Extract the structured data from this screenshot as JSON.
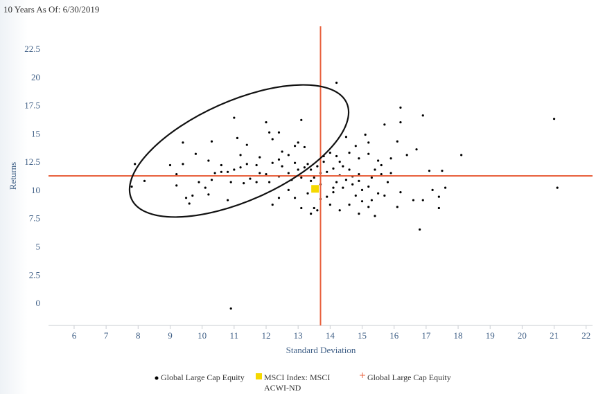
{
  "chart_data": {
    "type": "scatter",
    "title": "10 Years As Of: 6/30/2019",
    "x_label": "Standard Deviation",
    "y_label": "Returns",
    "xlim": [
      5.2,
      22.2
    ],
    "ylim": [
      -1.9,
      24.6
    ],
    "xticks": [
      6,
      7,
      8,
      9,
      10,
      11,
      12,
      13,
      14,
      15,
      16,
      17,
      18,
      19,
      20,
      21,
      22
    ],
    "yticks": [
      0,
      2.5,
      5,
      7.5,
      10,
      12.5,
      15,
      17.5,
      20,
      22.5
    ],
    "series": [
      {
        "name": "Global Large Cap Equity",
        "color": "#000000",
        "marker": "dot",
        "x": [
          10.9,
          14.2,
          21,
          21.1,
          16.8,
          7.8,
          7.9,
          8.2,
          16.2,
          16.9,
          18.1,
          15.7,
          15.1,
          16.2,
          16.1,
          16.7,
          17.5,
          17.1,
          17.6,
          17.2,
          17.4,
          17.4,
          16.9,
          16.2,
          16.6,
          16.1,
          15.7,
          15.4,
          16.4,
          11,
          12,
          13.1,
          12.1,
          12.4,
          11.1,
          12.2,
          10.3,
          9.4,
          13,
          13.2,
          12.7,
          9.8,
          11.2,
          11.8,
          12.4,
          9,
          9.4,
          11.7,
          11.4,
          11.2,
          10.6,
          10.8,
          10.4,
          9.2,
          10.1,
          9.2,
          10.2,
          9.5,
          9.7,
          9.6,
          10.8,
          10.9,
          11.3,
          11.7,
          12.1,
          12,
          12.4,
          12.7,
          12.4,
          12.2,
          12.9,
          12.7,
          13.3,
          13.1,
          13.4,
          13.5,
          13.7,
          13.9,
          14.3,
          14.1,
          14.4,
          14.6,
          14.8,
          14.9,
          15.2,
          15.3,
          15.5,
          15.2,
          15.6,
          15.9,
          15.4,
          15.5,
          15.2,
          14.9,
          14.6,
          14.3,
          14.2,
          14,
          14.1,
          14.3,
          14.5,
          14.7,
          14.2,
          13.9,
          13.6,
          13.4,
          13.2,
          13,
          12.9,
          13.3,
          13.5,
          13.7,
          13.8,
          14.4,
          14.6,
          14.9,
          15.3,
          15.8,
          15,
          14.7,
          14.1,
          13.7,
          13.4,
          13.1,
          12.8,
          12.5,
          12.2,
          11.8,
          11.5,
          11,
          10.6,
          10.3,
          9.9,
          15.6,
          15.9,
          15.2,
          14.8,
          14.5,
          13.8,
          12.5,
          12.9,
          11.4,
          10.2,
          14,
          13.6,
          14.9,
          15
        ],
        "values": [
          -0.4,
          19.6,
          16.4,
          10.3,
          6.6,
          10.4,
          12.4,
          10.9,
          17.4,
          16.7,
          13.2,
          15.9,
          15,
          16.1,
          14.4,
          13.7,
          11.8,
          11.8,
          10.3,
          10.1,
          9.5,
          8.5,
          9.2,
          9.9,
          9.2,
          8.6,
          9.6,
          7.8,
          13.2,
          16.5,
          16.1,
          16.3,
          15.2,
          15.2,
          14.7,
          14.6,
          14.4,
          14.3,
          14.3,
          13.9,
          13.2,
          13.3,
          13.2,
          13,
          12.8,
          12.3,
          12.4,
          12.3,
          12.4,
          12.1,
          11.7,
          11.7,
          11.6,
          11.5,
          10.3,
          10.5,
          9.7,
          9.4,
          9.6,
          8.9,
          9.2,
          10.8,
          10.7,
          10.8,
          10.8,
          11.5,
          11.3,
          11.6,
          9.4,
          8.8,
          9.4,
          10.1,
          9.8,
          8.5,
          8,
          8.5,
          9.3,
          9.5,
          8.3,
          9.9,
          10.3,
          8.8,
          9.6,
          10.9,
          8.6,
          9.2,
          9.8,
          10.4,
          11.5,
          11.6,
          11.9,
          12.7,
          13.3,
          12.9,
          13.4,
          12.6,
          13.1,
          13.4,
          12,
          11.4,
          11,
          11.3,
          10.8,
          11.7,
          12.2,
          11.9,
          12.1,
          11.9,
          12.5,
          12.4,
          11.2,
          11.6,
          12.6,
          12.2,
          11.9,
          11.5,
          11.2,
          10.8,
          10.1,
          10.6,
          10.3,
          10.6,
          10.9,
          11.2,
          11,
          12.2,
          12.5,
          11.6,
          11.1,
          11.9,
          12.3,
          11,
          10.8,
          12.3,
          12.9,
          14.3,
          14,
          14.8,
          13.1,
          13.5,
          14,
          14.1,
          12.7,
          8.8,
          8.3,
          8,
          9.1
        ]
      },
      {
        "name": "MSCI Index: MSCI ACWI-ND",
        "color": "#f5d800",
        "marker": "square",
        "x": [
          13.53
        ],
        "values": [
          10.2
        ]
      },
      {
        "name": "Global Large Cap Equity",
        "color": "#e8603c",
        "marker": "cross",
        "x": [
          13.7
        ],
        "values": [
          11.35
        ]
      }
    ]
  }
}
